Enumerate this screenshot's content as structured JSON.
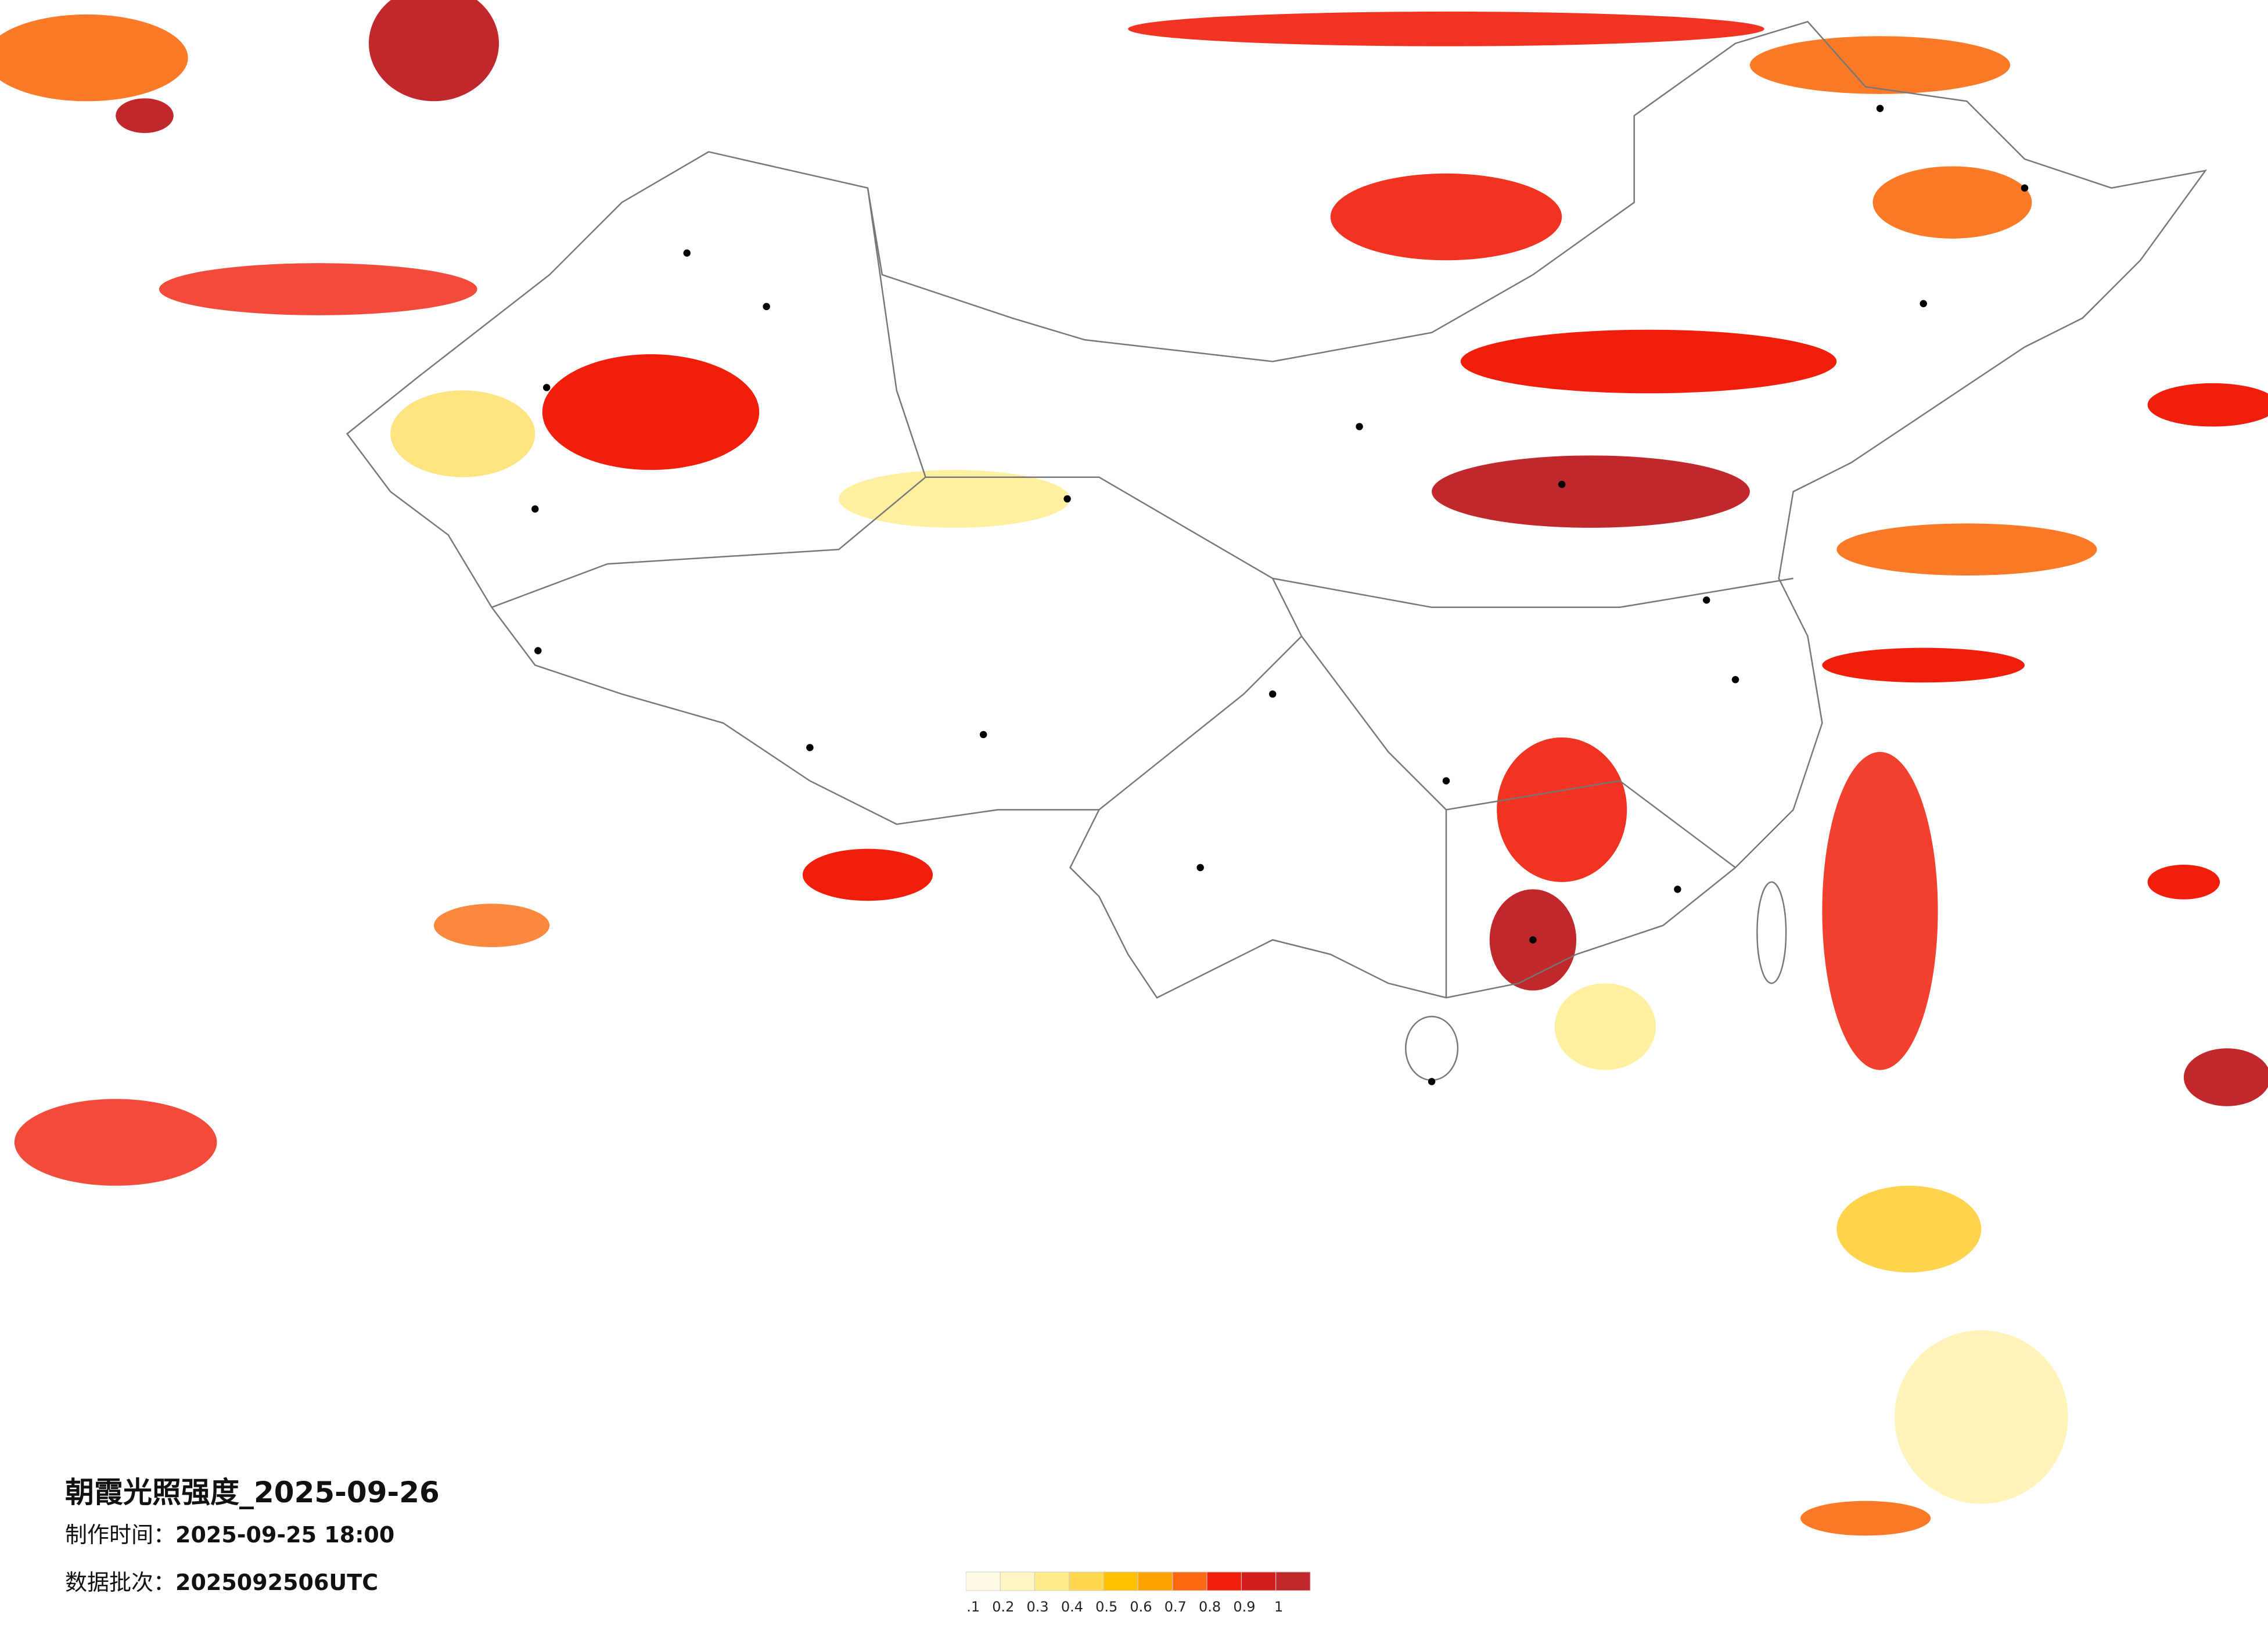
{
  "title": "朝霞光照强度_2025-09-26",
  "made_time": {
    "label": "制作时间：",
    "value": "2025-09-25 18:00"
  },
  "batch": {
    "label": "数据批次：",
    "value": "2025092506UTC"
  },
  "legend": {
    "labels": [
      0.1,
      0.2,
      0.3,
      0.4,
      0.5,
      0.6,
      0.7,
      0.8,
      0.9,
      1
    ],
    "colors": [
      "#fffbe6",
      "#fff5c2",
      "#ffeb8a",
      "#ffd84d",
      "#ffc000",
      "#ffa200",
      "#fb6a10",
      "#f01e0a",
      "#d41e1e",
      "#c0282c"
    ]
  }
}
